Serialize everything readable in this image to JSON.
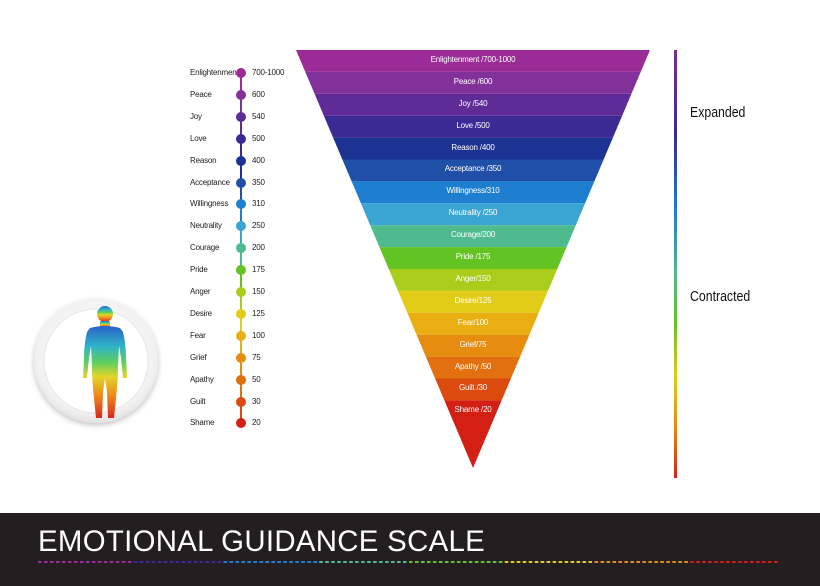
{
  "title": "EMOTIONAL GUIDANCE SCALE",
  "side_labels": {
    "top": "Expanded",
    "bottom": "Contracted"
  },
  "levels": [
    {
      "name": "Enlightenment",
      "value": "700-1000",
      "band_label": "Enlightenment /700-1000",
      "color": "#9b2b96"
    },
    {
      "name": "Peace",
      "value": "600",
      "band_label": "Peace /600",
      "color": "#82309a"
    },
    {
      "name": "Joy",
      "value": "540",
      "band_label": "Joy /540",
      "color": "#5e2b97"
    },
    {
      "name": "Love",
      "value": "500",
      "band_label": "Love /500",
      "color": "#3b2a93"
    },
    {
      "name": "Reason",
      "value": "400",
      "band_label": "Reason /400",
      "color": "#1d3394"
    },
    {
      "name": "Acceptance",
      "value": "350",
      "band_label": "Acceptance /350",
      "color": "#1f4fa6"
    },
    {
      "name": "Willingness",
      "value": "310",
      "band_label": "Willingness/310",
      "color": "#1e7fd0"
    },
    {
      "name": "Neutrality",
      "value": "250",
      "band_label": "Neutrality /250",
      "color": "#3aa4d2"
    },
    {
      "name": "Courage",
      "value": "200",
      "band_label": "Courage/200",
      "color": "#4fba8d"
    },
    {
      "name": "Pride",
      "value": "175",
      "band_label": "Pride /175",
      "color": "#63c322"
    },
    {
      "name": "Anger",
      "value": "150",
      "band_label": "Anger/150",
      "color": "#aacd1c"
    },
    {
      "name": "Desire",
      "value": "125",
      "band_label": "Desire/125",
      "color": "#e2cc17"
    },
    {
      "name": "Fear",
      "value": "100",
      "band_label": "Fear/100",
      "color": "#e8ae12"
    },
    {
      "name": "Grief",
      "value": "75",
      "band_label": "Grief/75",
      "color": "#e68d0f"
    },
    {
      "name": "Apathy",
      "value": "50",
      "band_label": "Apathy /50",
      "color": "#e2700e"
    },
    {
      "name": "Guilt",
      "value": "30",
      "band_label": "Guilt /30",
      "color": "#dc4a10"
    },
    {
      "name": "Shame",
      "value": "20",
      "band_label": "Shame /20",
      "color": "#d41f15"
    }
  ],
  "footer_stripe_colors": [
    "#9b2b96",
    "#3b2a93",
    "#1e7fd0",
    "#4fba8d",
    "#63c322",
    "#e2cc17",
    "#e68d0f",
    "#d41f15"
  ]
}
